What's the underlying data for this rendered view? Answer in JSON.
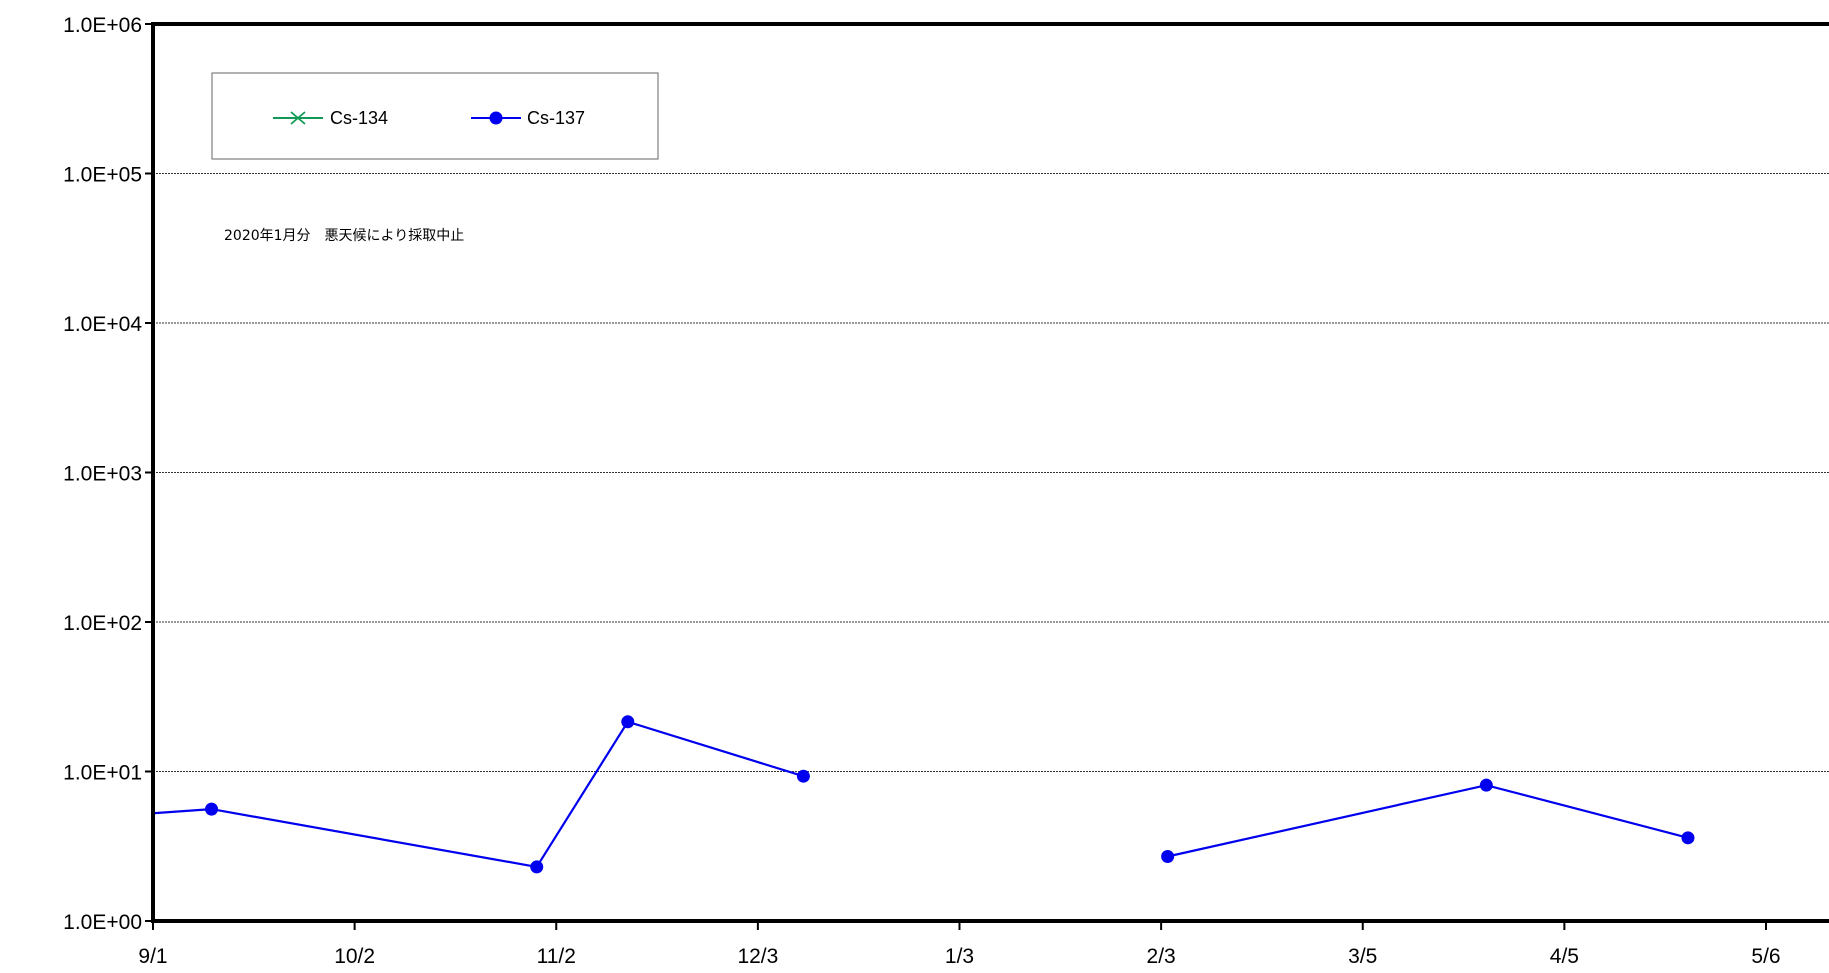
{
  "chart_data": {
    "type": "line",
    "title": "",
    "xlabel": "",
    "ylabel": "",
    "y_scale": "log",
    "ylim": [
      1,
      1000000
    ],
    "y_ticks": [
      {
        "value": 1,
        "label": "1.0E+00"
      },
      {
        "value": 10,
        "label": "1.0E+01"
      },
      {
        "value": 100,
        "label": "1.0E+02"
      },
      {
        "value": 1000,
        "label": "1.0E+03"
      },
      {
        "value": 10000,
        "label": "1.0E+04"
      },
      {
        "value": 100000,
        "label": "1.0E+05"
      },
      {
        "value": 1000000,
        "label": "1.0E+06"
      }
    ],
    "x_type": "date",
    "xlim": [
      "2019-09-01",
      "2020-05-15"
    ],
    "x_ticks": [
      {
        "date": "2019-09-01",
        "label": "9/1"
      },
      {
        "date": "2019-10-02",
        "label": "10/2"
      },
      {
        "date": "2019-11-02",
        "label": "11/2"
      },
      {
        "date": "2019-12-03",
        "label": "12/3"
      },
      {
        "date": "2020-01-03",
        "label": "1/3"
      },
      {
        "date": "2020-02-03",
        "label": "2/3"
      },
      {
        "date": "2020-03-05",
        "label": "3/5"
      },
      {
        "date": "2020-04-05",
        "label": "4/5"
      },
      {
        "date": "2020-05-06",
        "label": "5/6"
      }
    ],
    "grid": "horizontal",
    "legend_position": "top-left",
    "series": [
      {
        "name": "Cs-134",
        "color": "#119955",
        "marker": "x",
        "points": []
      },
      {
        "name": "Cs-137",
        "color": "#0000ee",
        "marker": "circle",
        "segments": [
          [
            {
              "date": "2019-08-22",
              "value": 4.9
            },
            {
              "date": "2019-09-10",
              "value": 5.6
            },
            {
              "date": "2019-10-30",
              "value": 2.3
            },
            {
              "date": "2019-11-13",
              "value": 21.5
            },
            {
              "date": "2019-12-10",
              "value": 9.3
            }
          ],
          [
            {
              "date": "2020-02-04",
              "value": 2.7
            },
            {
              "date": "2020-03-24",
              "value": 8.1
            },
            {
              "date": "2020-04-24",
              "value": 3.6
            }
          ]
        ]
      }
    ],
    "annotations": [
      {
        "text": "2020年1月分　悪天候により採取中止"
      }
    ]
  }
}
